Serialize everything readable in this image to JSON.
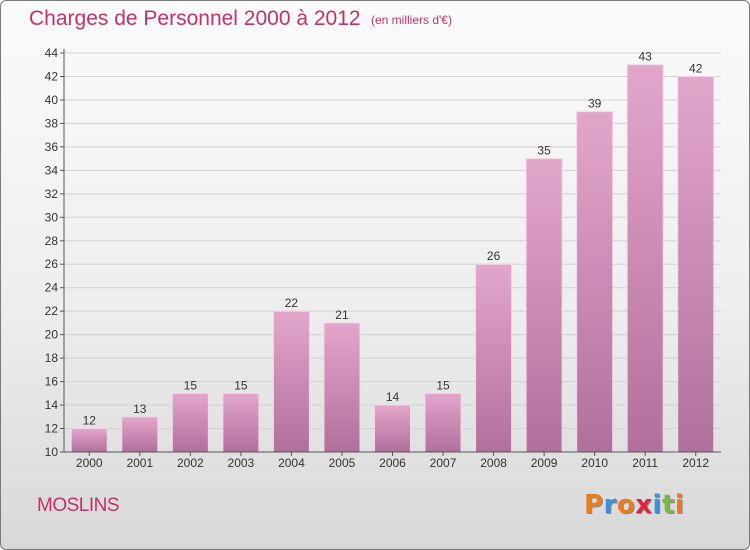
{
  "header": {
    "title": "Charges de Personnel 2000 à 2012",
    "subtitle": "(en milliers d'€)"
  },
  "footer": {
    "commune": "MOSLINS",
    "logo_letters": [
      "P",
      "r",
      "o",
      "x",
      "i",
      "t",
      "i"
    ],
    "logo_colors": [
      "#e87c1e",
      "#3d8fd6",
      "#e87c1e",
      "#d7263d",
      "#3d8fd6",
      "#7ab648",
      "#e87c1e"
    ]
  },
  "chart_data": {
    "type": "bar",
    "categories": [
      "2000",
      "2001",
      "2002",
      "2003",
      "2004",
      "2005",
      "2006",
      "2007",
      "2008",
      "2009",
      "2010",
      "2011",
      "2012"
    ],
    "values": [
      12,
      13,
      15,
      15,
      22,
      21,
      14,
      15,
      26,
      35,
      39,
      43,
      42
    ],
    "ylim": [
      10,
      44
    ],
    "yticks": [
      10,
      12,
      14,
      16,
      18,
      20,
      22,
      24,
      26,
      28,
      30,
      32,
      34,
      36,
      38,
      40,
      42,
      44
    ],
    "grid": true,
    "bar_color_top": "#e3a6cb",
    "bar_color_bottom": "#b0709c",
    "title": "Charges de Personnel 2000 à 2012",
    "xlabel": "",
    "ylabel": ""
  }
}
